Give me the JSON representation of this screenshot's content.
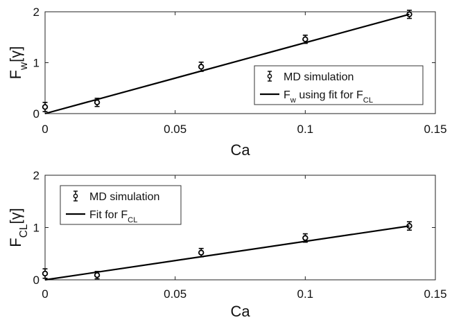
{
  "chart_data": [
    {
      "type": "scatter",
      "xlabel": "Ca",
      "ylabel_main": "F",
      "ylabel_sub": "w",
      "ylabel_unit": "[γ]",
      "xlim": [
        0,
        0.15
      ],
      "ylim": [
        0,
        2
      ],
      "x_ticks": [
        "0",
        "0.05",
        "0.1",
        "0.15"
      ],
      "y_ticks": [
        "0",
        "1",
        "2"
      ],
      "grid": false,
      "legend_position": "center-right",
      "series": [
        {
          "name": "MD simulation",
          "kind": "errorbar",
          "x": [
            0,
            0.02,
            0.06,
            0.1,
            0.14
          ],
          "y": [
            0.13,
            0.22,
            0.92,
            1.46,
            1.95
          ],
          "err": [
            0.09,
            0.08,
            0.09,
            0.08,
            0.08
          ]
        },
        {
          "name_main": "F",
          "name_sub": "w",
          "name_mid": " using fit for F",
          "name_sub2": "CL",
          "kind": "line",
          "x": [
            0,
            0.14
          ],
          "y": [
            0,
            1.95
          ]
        }
      ]
    },
    {
      "type": "scatter",
      "xlabel": "Ca",
      "ylabel_main": "F",
      "ylabel_sub": "CL",
      "ylabel_unit": "[γ]",
      "xlim": [
        0,
        0.15
      ],
      "ylim": [
        0,
        2
      ],
      "x_ticks": [
        "0",
        "0.05",
        "0.1",
        "0.15"
      ],
      "y_ticks": [
        "0",
        "1",
        "2"
      ],
      "grid": false,
      "legend_position": "top-left",
      "series": [
        {
          "name": "MD simulation",
          "kind": "errorbar",
          "x": [
            0,
            0.02,
            0.06,
            0.1,
            0.14
          ],
          "y": [
            0.12,
            0.09,
            0.52,
            0.8,
            1.03
          ],
          "err": [
            0.09,
            0.07,
            0.08,
            0.08,
            0.08
          ]
        },
        {
          "name_main": "Fit for F",
          "name_sub": "CL",
          "kind": "line",
          "x": [
            0,
            0.14
          ],
          "y": [
            0,
            1.03
          ]
        }
      ]
    }
  ]
}
